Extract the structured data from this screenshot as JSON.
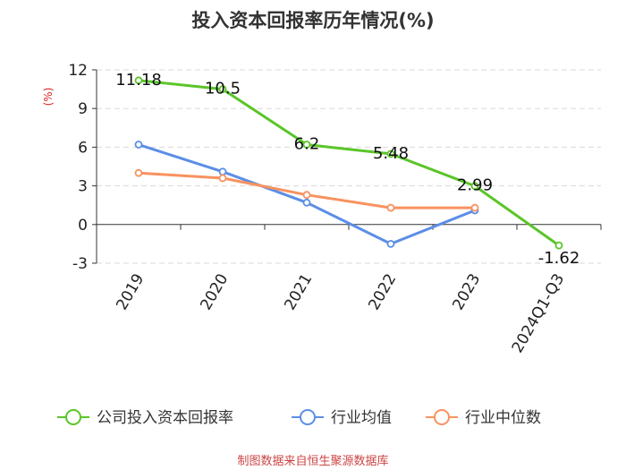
{
  "chart_data": {
    "type": "line",
    "title": "投入资本回报率历年情况(%)",
    "ylabel": "(%)",
    "xlabel": "",
    "categories": [
      "2019",
      "2020",
      "2021",
      "2022",
      "2023",
      "2024Q1-Q3"
    ],
    "ylim": [
      -3,
      12
    ],
    "yticks": [
      12,
      9,
      6,
      3,
      0,
      -3
    ],
    "grid": true,
    "legend_position": "bottom",
    "series": [
      {
        "name": "公司投入资本回报率",
        "color": "#5ac528",
        "values": [
          11.18,
          10.5,
          6.2,
          5.48,
          2.99,
          -1.62
        ],
        "labels": [
          "11.18",
          "10.5",
          "6.2",
          "5.48",
          "2.99",
          "-1.62"
        ]
      },
      {
        "name": "行业均值",
        "color": "#5b8ee6",
        "values": [
          6.2,
          4.1,
          1.7,
          -1.5,
          1.1,
          null
        ]
      },
      {
        "name": "行业中位数",
        "color": "#f8925f",
        "values": [
          4.0,
          3.6,
          2.3,
          1.3,
          1.3,
          null
        ]
      }
    ],
    "source": "制图数据来自恒生聚源数据库"
  }
}
